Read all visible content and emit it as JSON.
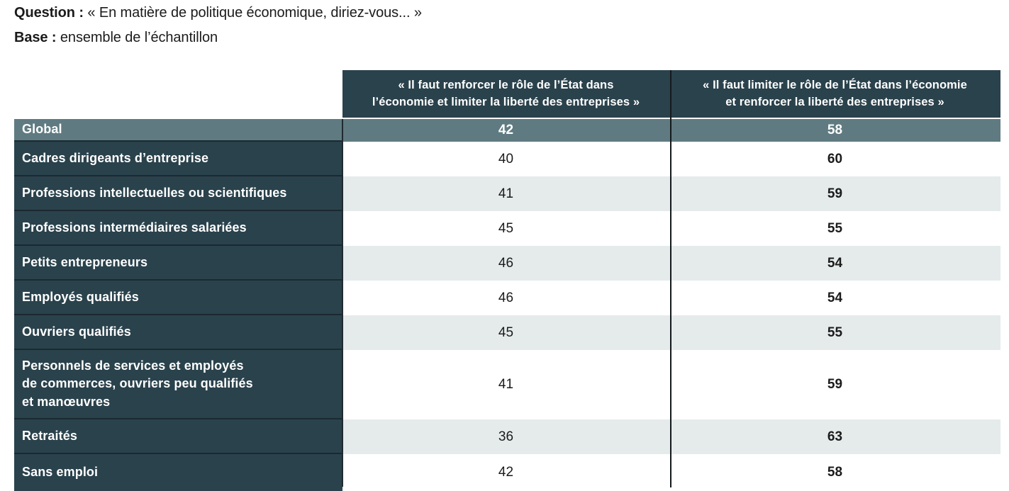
{
  "intro": {
    "question_label": "Question :",
    "question_text": " « En matière de politique économique, diriez-vous... »",
    "base_label": "Base :",
    "base_text": " ensemble de l’échantillon"
  },
  "table": {
    "columns": [
      "« Il faut renforcer le rôle de l’État dans\nl’économie et limiter la liberté des entreprises »",
      "« Il faut limiter le rôle de l’État dans l’économie\net renforcer la liberté des entreprises »"
    ],
    "rows": [
      {
        "label": "Global",
        "values": [
          42,
          58
        ]
      },
      {
        "label": "Cadres dirigeants d’entreprise",
        "values": [
          40,
          60
        ]
      },
      {
        "label": "Professions intellectuelles ou scientifiques",
        "values": [
          41,
          59
        ]
      },
      {
        "label": "Professions intermédiaires salariées",
        "values": [
          45,
          55
        ]
      },
      {
        "label": "Petits entrepreneurs",
        "values": [
          46,
          54
        ]
      },
      {
        "label": "Employés qualifiés",
        "values": [
          46,
          54
        ]
      },
      {
        "label": "Ouvriers qualifiés",
        "values": [
          45,
          55
        ]
      },
      {
        "label": "Personnels de services et employés\nde commerces, ouvriers peu qualifiés\net manœuvres",
        "values": [
          41,
          59
        ]
      },
      {
        "label": "Retraités",
        "values": [
          36,
          63
        ]
      },
      {
        "label": "Sans emploi",
        "values": [
          42,
          58
        ]
      }
    ]
  },
  "colors": {
    "dark": "#2a424c",
    "global": "#5f7b81",
    "alt": "#e5ebeb",
    "divider": "#141a1c"
  },
  "chart_data": {
    "type": "table",
    "title": "En matière de politique économique, diriez-vous...",
    "base": "ensemble de l’échantillon",
    "categories": [
      "Global",
      "Cadres dirigeants d’entreprise",
      "Professions intellectuelles ou scientifiques",
      "Professions intermédiaires salariées",
      "Petits entrepreneurs",
      "Employés qualifiés",
      "Ouvriers qualifiés",
      "Personnels de services et employés de commerces, ouvriers peu qualifiés et manœuvres",
      "Retraités",
      "Sans emploi"
    ],
    "series": [
      {
        "name": "« Il faut renforcer le rôle de l’État dans l’économie et limiter la liberté des entreprises »",
        "values": [
          42,
          40,
          41,
          45,
          46,
          46,
          45,
          41,
          36,
          42
        ]
      },
      {
        "name": "« Il faut limiter le rôle de l’État dans l’économie et renforcer la liberté des entreprises »",
        "values": [
          58,
          60,
          59,
          55,
          54,
          54,
          55,
          59,
          63,
          58
        ]
      }
    ]
  }
}
